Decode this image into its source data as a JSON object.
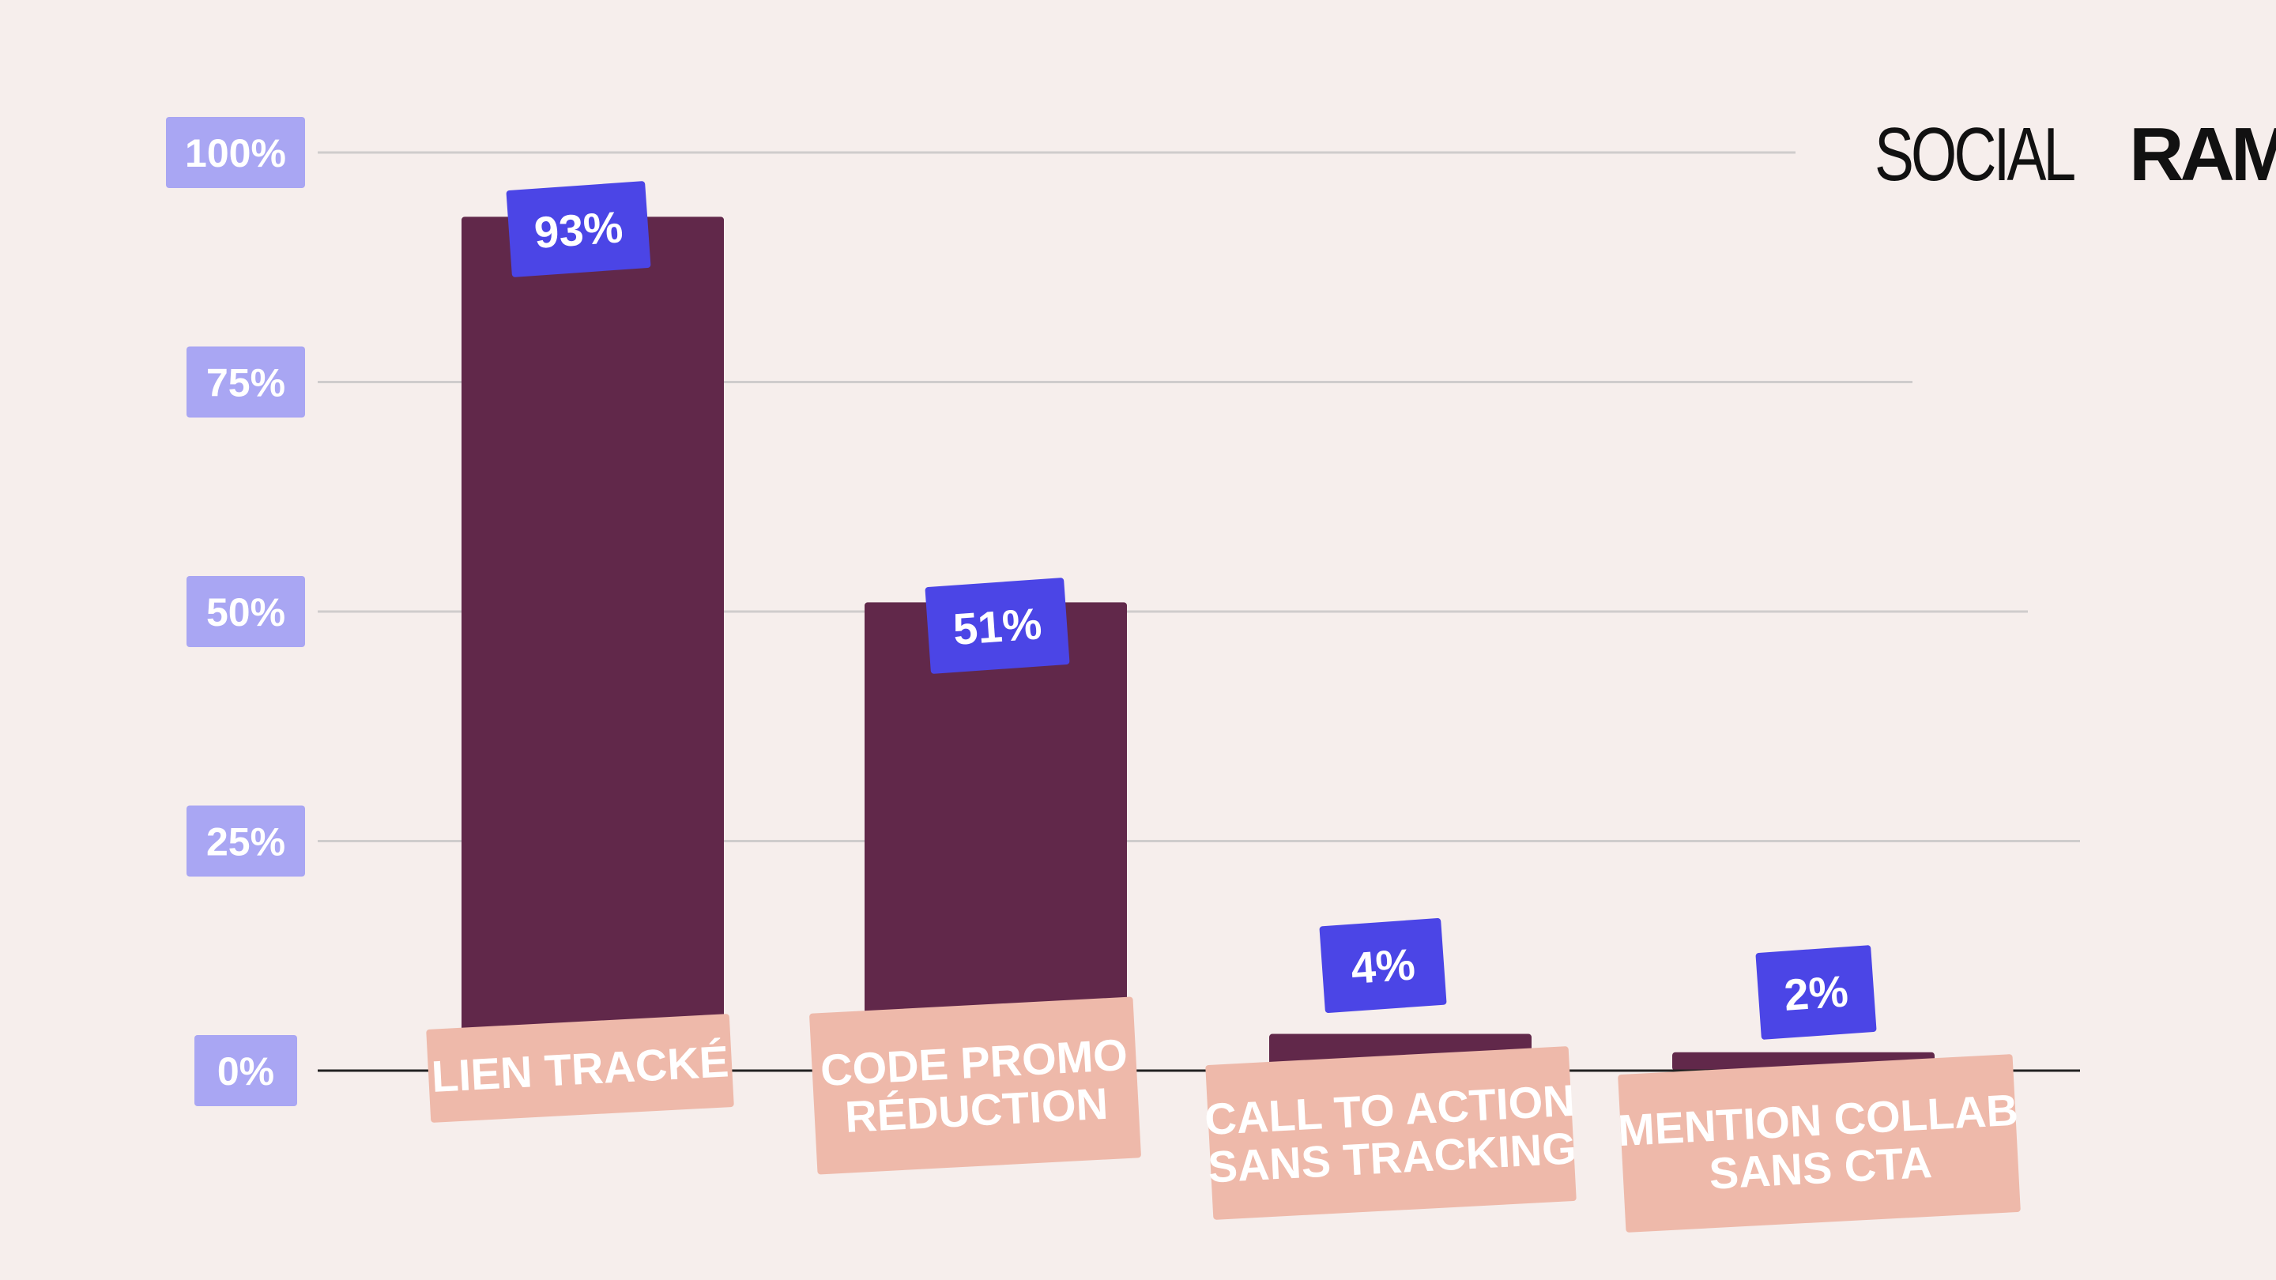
{
  "brand": {
    "part1": "SOCIAL",
    "part2": "RAMA"
  },
  "colors": {
    "background": "#f6eeec",
    "bar": "#61284a",
    "value_badge": "#4b45e6",
    "y_badge": "#a9a6f3",
    "category_badge": "#eeb9aa",
    "grid": "#cfcccc",
    "baseline": "#222222"
  },
  "chart_data": {
    "type": "bar",
    "categories": [
      [
        "LIEN TRACKÉ"
      ],
      [
        "CODE PROMO",
        "RÉDUCTION"
      ],
      [
        "CALL TO ACTION",
        "SANS TRACKING"
      ],
      [
        "MENTION COLLAB",
        "SANS CTA"
      ]
    ],
    "values": [
      93,
      51,
      4,
      2
    ],
    "value_labels": [
      "93%",
      "51%",
      "4%",
      "2%"
    ],
    "yticks": [
      0,
      25,
      50,
      75,
      100
    ],
    "ytick_labels": [
      "0%",
      "25%",
      "50%",
      "75%",
      "100%"
    ],
    "ylim": [
      0,
      100
    ],
    "grid": true,
    "legend": "none"
  }
}
